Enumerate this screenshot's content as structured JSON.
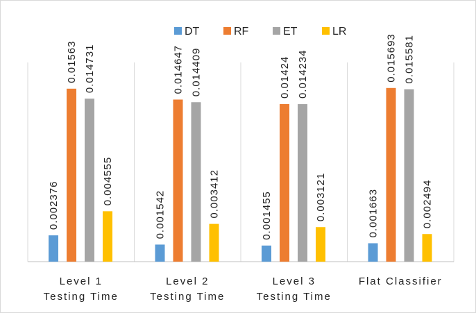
{
  "chart_data": {
    "type": "bar",
    "categories": [
      "Level 1\nTesting Time",
      "Level 2\nTesting Time",
      "Level 3\nTesting Time",
      "Flat Classifier"
    ],
    "series": [
      {
        "name": "DT",
        "color": "#5b9bd5",
        "values": [
          0.002376,
          0.001542,
          0.001455,
          0.001663
        ]
      },
      {
        "name": "RF",
        "color": "#ed7d31",
        "values": [
          0.01563,
          0.014647,
          0.01424,
          0.015693
        ]
      },
      {
        "name": "ET",
        "color": "#a5a5a5",
        "values": [
          0.014731,
          0.014409,
          0.014234,
          0.015581
        ]
      },
      {
        "name": "LR",
        "color": "#ffc000",
        "values": [
          0.004555,
          0.003412,
          0.003121,
          0.002494
        ]
      }
    ],
    "ylim": [
      0,
      0.018
    ],
    "legend": "top"
  }
}
